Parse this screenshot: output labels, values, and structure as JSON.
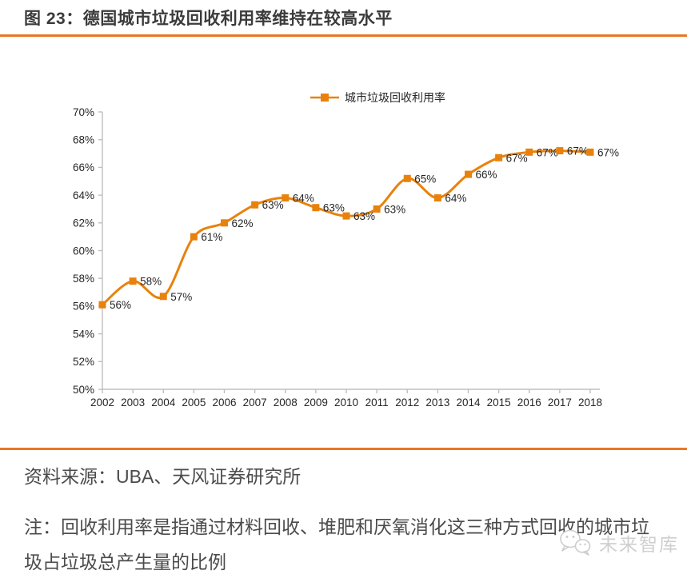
{
  "header": {
    "title": "图 23：德国城市垃圾回收利用率维持在较高水平"
  },
  "footer": {
    "source": "资料来源：UBA、天风证券研究所",
    "note_lines": [
      "注：回收利用率是指通过材料回收、堆肥和厌氧消化这三种方式回收的城市垃",
      "圾占垃圾总产生量的比例"
    ],
    "watermark_label": "未来智库"
  },
  "colors": {
    "accent_rule": "#e87722",
    "series_orange": "#e8820c",
    "title_text": "#3b3b3b",
    "body_text": "#4b4b4b",
    "axis_line": "#bfbfbf",
    "chart_text": "#262626",
    "watermark_gray": "#cfcfcf"
  },
  "chart_data": {
    "type": "line",
    "smooth": true,
    "marker": "square",
    "grid": false,
    "title": "",
    "xlabel": "",
    "ylabel": "",
    "legend_position": "top-center",
    "categories": [
      "2002",
      "2003",
      "2004",
      "2005",
      "2006",
      "2007",
      "2008",
      "2009",
      "2010",
      "2011",
      "2012",
      "2013",
      "2014",
      "2015",
      "2016",
      "2017",
      "2018"
    ],
    "series": [
      {
        "name": "城市垃圾回收利用率",
        "values": [
          56.1,
          57.8,
          56.7,
          61.0,
          62.0,
          63.3,
          63.8,
          63.1,
          62.5,
          63.0,
          65.2,
          63.8,
          65.5,
          66.7,
          67.1,
          67.2,
          67.1
        ],
        "point_labels": [
          "56%",
          "58%",
          "57%",
          "61%",
          "62%",
          "63%",
          "64%",
          "63%",
          "63%",
          "63%",
          "65%",
          "64%",
          "66%",
          "67%",
          "67%",
          "67%",
          "67%"
        ]
      }
    ],
    "ylim": [
      50,
      70
    ],
    "ytick_step": 2,
    "yticks": [
      "50%",
      "52%",
      "54%",
      "56%",
      "58%",
      "60%",
      "62%",
      "64%",
      "66%",
      "68%",
      "70%"
    ]
  }
}
